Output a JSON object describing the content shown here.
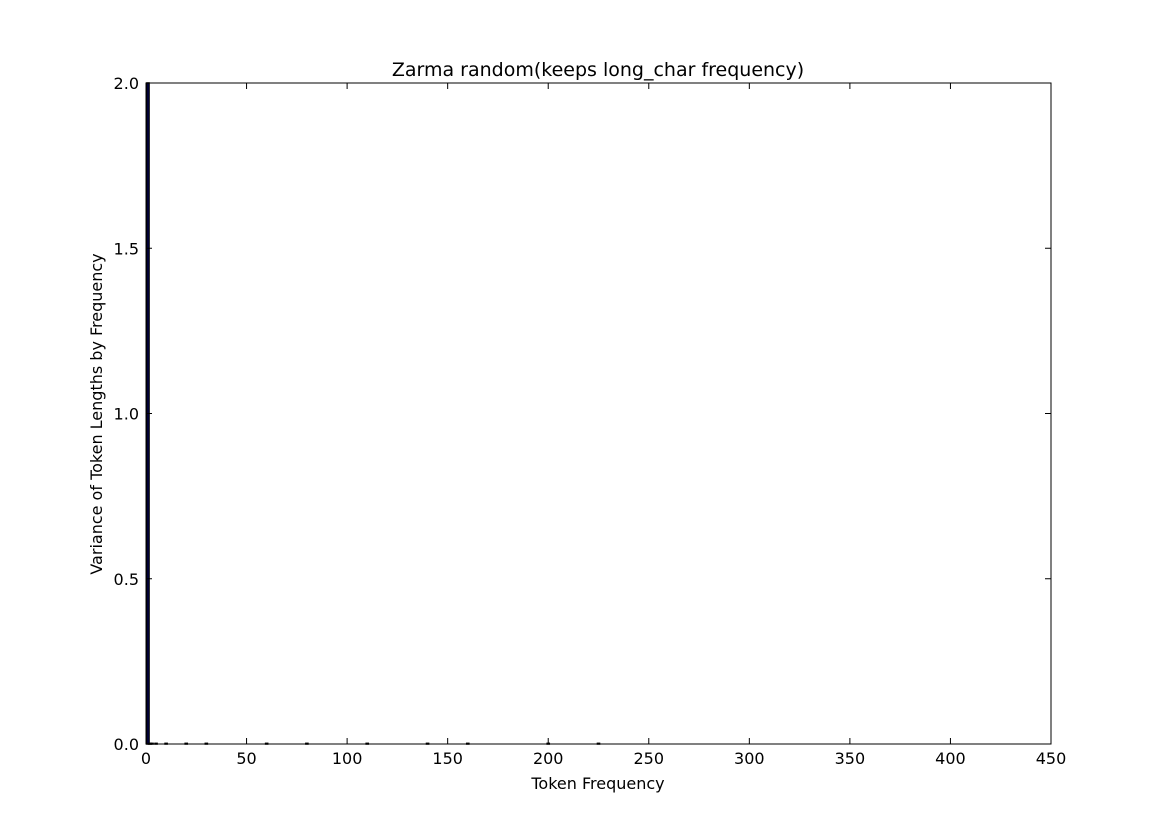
{
  "chart_data": {
    "type": "bar",
    "title": "Zarma random(keeps long_char frequency)",
    "xlabel": "Token Frequency",
    "ylabel": "Variance of Token Lengths by Frequency",
    "xlim": [
      0,
      450
    ],
    "ylim": [
      0,
      2.0
    ],
    "x_ticks": [
      "0",
      "50",
      "100",
      "150",
      "200",
      "250",
      "300",
      "350",
      "400",
      "450"
    ],
    "y_ticks": [
      "0.0",
      "0.5",
      "1.0",
      "1.5",
      "2.0"
    ],
    "grid": false,
    "bar_width": 1,
    "colors": {
      "bar_fill": "#0000ff",
      "bar_edge": "#000000"
    },
    "bars": [
      {
        "x": 1,
        "value": 2.0
      },
      {
        "x": 2,
        "value": 0.0
      },
      {
        "x": 3,
        "value": 0.0
      },
      {
        "x": 5,
        "value": 0.0
      },
      {
        "x": 10,
        "value": 0.0
      },
      {
        "x": 20,
        "value": 0.0
      },
      {
        "x": 30,
        "value": 0.0
      },
      {
        "x": 60,
        "value": 0.0
      },
      {
        "x": 80,
        "value": 0.0
      },
      {
        "x": 110,
        "value": 0.0
      },
      {
        "x": 140,
        "value": 0.0
      },
      {
        "x": 160,
        "value": 0.0
      },
      {
        "x": 200,
        "value": 0.0
      },
      {
        "x": 225,
        "value": 0.0
      }
    ]
  }
}
